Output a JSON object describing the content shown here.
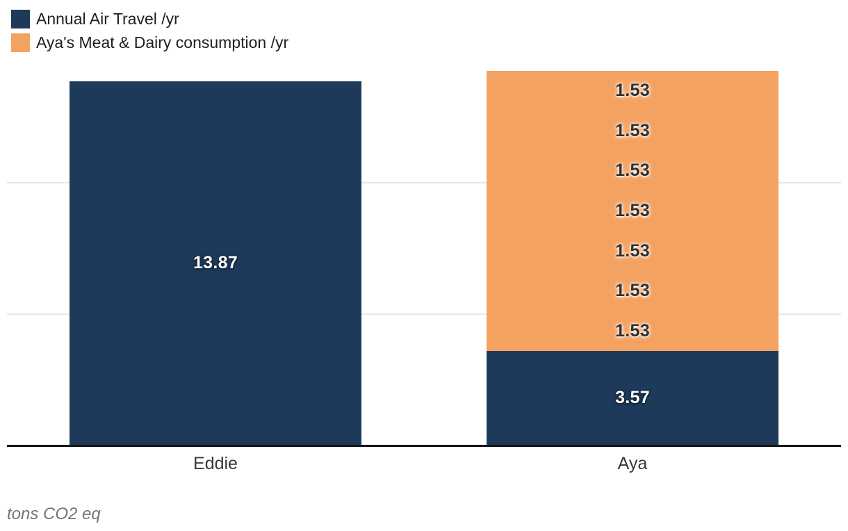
{
  "chart_data": {
    "type": "bar",
    "stacked": true,
    "title": "",
    "xlabel": "",
    "ylabel": "",
    "unit_note": "tons CO2 eq",
    "categories": [
      "Eddie",
      "Aya"
    ],
    "series": [
      {
        "key": "air",
        "name": "Annual Air Travel /yr",
        "color": "#1e3a5b",
        "values": [
          13.87,
          3.57
        ]
      },
      {
        "key": "meat",
        "name": "Aya's Meat & Dairy consumption /yr",
        "color": "#f4a261",
        "values": [
          0,
          10.71
        ]
      }
    ],
    "bars": [
      {
        "category": "Eddie",
        "total": 13.87,
        "segments": [
          {
            "series": "air",
            "value": 13.87,
            "label": "13.87",
            "label_tone": "light"
          }
        ]
      },
      {
        "category": "Aya",
        "total": 14.28,
        "segments": [
          {
            "series": "air",
            "value": 3.57,
            "label": "3.57",
            "label_tone": "light"
          },
          {
            "series": "meat",
            "value": 1.53,
            "label": "1.53",
            "label_tone": "dark"
          },
          {
            "series": "meat",
            "value": 1.53,
            "label": "1.53",
            "label_tone": "dark"
          },
          {
            "series": "meat",
            "value": 1.53,
            "label": "1.53",
            "label_tone": "dark"
          },
          {
            "series": "meat",
            "value": 1.53,
            "label": "1.53",
            "label_tone": "dark"
          },
          {
            "series": "meat",
            "value": 1.53,
            "label": "1.53",
            "label_tone": "dark"
          },
          {
            "series": "meat",
            "value": 1.53,
            "label": "1.53",
            "label_tone": "dark"
          },
          {
            "series": "meat",
            "value": 1.53,
            "label": "1.53",
            "label_tone": "dark"
          }
        ]
      }
    ],
    "ylim": [
      0,
      15.3
    ],
    "gridline_values": [
      5,
      10
    ],
    "grid": true,
    "legend_position": "top-left",
    "colors": {
      "background": "#ffffff",
      "gridline": "#e8e8e8",
      "axis_line": "#151515",
      "label_light": "#ffffff",
      "label_dark": "#2f2f2f",
      "category_label": "#383838",
      "unit_note": "#757575",
      "legend_text": "#1f1f1f"
    }
  }
}
